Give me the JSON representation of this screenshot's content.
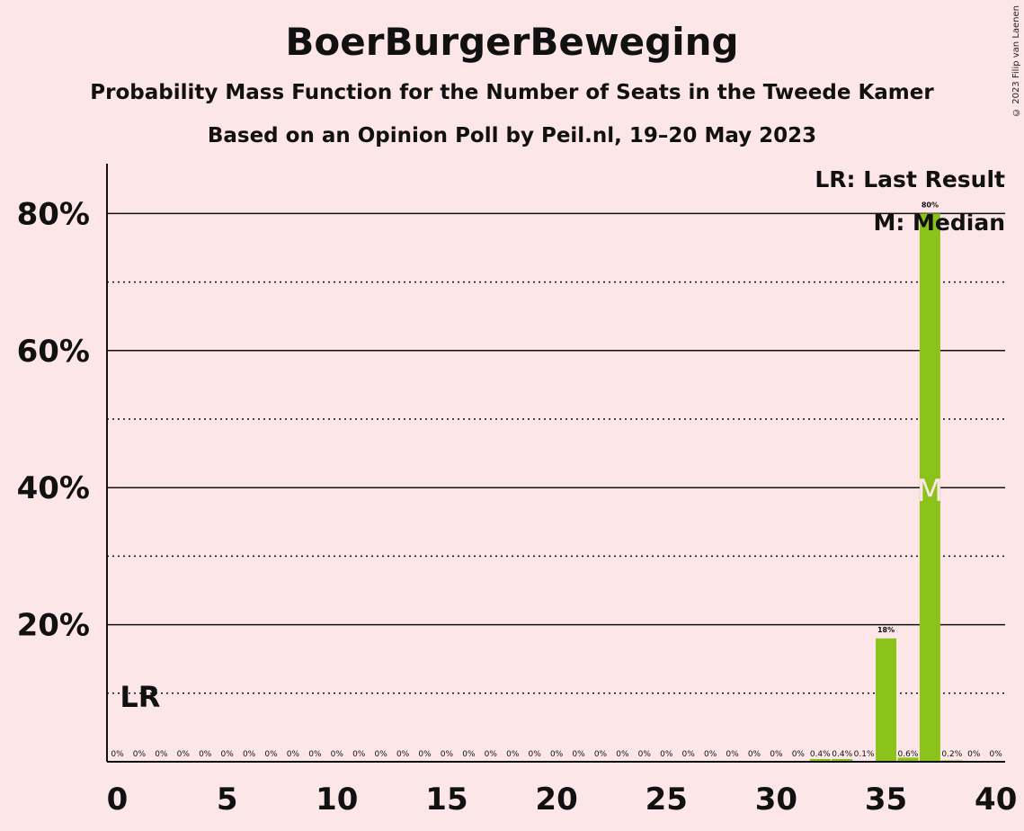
{
  "header": {
    "title": "BoerBurgerBeweging",
    "subtitle": "Probability Mass Function for the Number of Seats in the Tweede Kamer",
    "subtitle2": "Based on an Opinion Poll by Peil.nl, 19–20 May 2023",
    "copyright": "© 2023 Filip van Laenen"
  },
  "legend": {
    "last_result": "LR: Last Result",
    "median": "M: Median"
  },
  "markers": {
    "last_result_label": "LR",
    "last_result_seats": 1,
    "median_label": "M",
    "median_seats": 37
  },
  "colors": {
    "background": "#fce6e8",
    "bar": "#8bc31a",
    "text": "#111111",
    "median_marker": "#fce6e8"
  },
  "chart_data": {
    "type": "bar",
    "title": "BoerBurgerBeweging",
    "xlabel": "",
    "ylabel": "",
    "xlim": [
      0,
      40
    ],
    "ylim": [
      0,
      87
    ],
    "x_ticks": [
      0,
      5,
      10,
      15,
      20,
      25,
      30,
      35,
      40
    ],
    "y_ticks": [
      20,
      40,
      60,
      80
    ],
    "y_tick_labels": [
      "20%",
      "40%",
      "60%",
      "80%"
    ],
    "y_minor_dotted": [
      10,
      30,
      50,
      70
    ],
    "grid": true,
    "legend_position": "top-right",
    "categories": [
      0,
      1,
      2,
      3,
      4,
      5,
      6,
      7,
      8,
      9,
      10,
      11,
      12,
      13,
      14,
      15,
      16,
      17,
      18,
      19,
      20,
      21,
      22,
      23,
      24,
      25,
      26,
      27,
      28,
      29,
      30,
      31,
      32,
      33,
      34,
      35,
      36,
      37,
      38,
      39,
      40
    ],
    "values": [
      0,
      0,
      0,
      0,
      0,
      0,
      0,
      0,
      0,
      0,
      0,
      0,
      0,
      0,
      0,
      0,
      0,
      0,
      0,
      0,
      0,
      0,
      0,
      0,
      0,
      0,
      0,
      0,
      0,
      0,
      0,
      0,
      0.4,
      0.4,
      0.1,
      18,
      0.6,
      80,
      0.2,
      0,
      0
    ],
    "value_labels": [
      "0%",
      "0%",
      "0%",
      "0%",
      "0%",
      "0%",
      "0%",
      "0%",
      "0%",
      "0%",
      "0%",
      "0%",
      "0%",
      "0%",
      "0%",
      "0%",
      "0%",
      "0%",
      "0%",
      "0%",
      "0%",
      "0%",
      "0%",
      "0%",
      "0%",
      "0%",
      "0%",
      "0%",
      "0%",
      "0%",
      "0%",
      "0%",
      "0.4%",
      "0.4%",
      "0.1%",
      "18%",
      "0.6%",
      "80%",
      "0.2%",
      "0%",
      "0%"
    ]
  }
}
